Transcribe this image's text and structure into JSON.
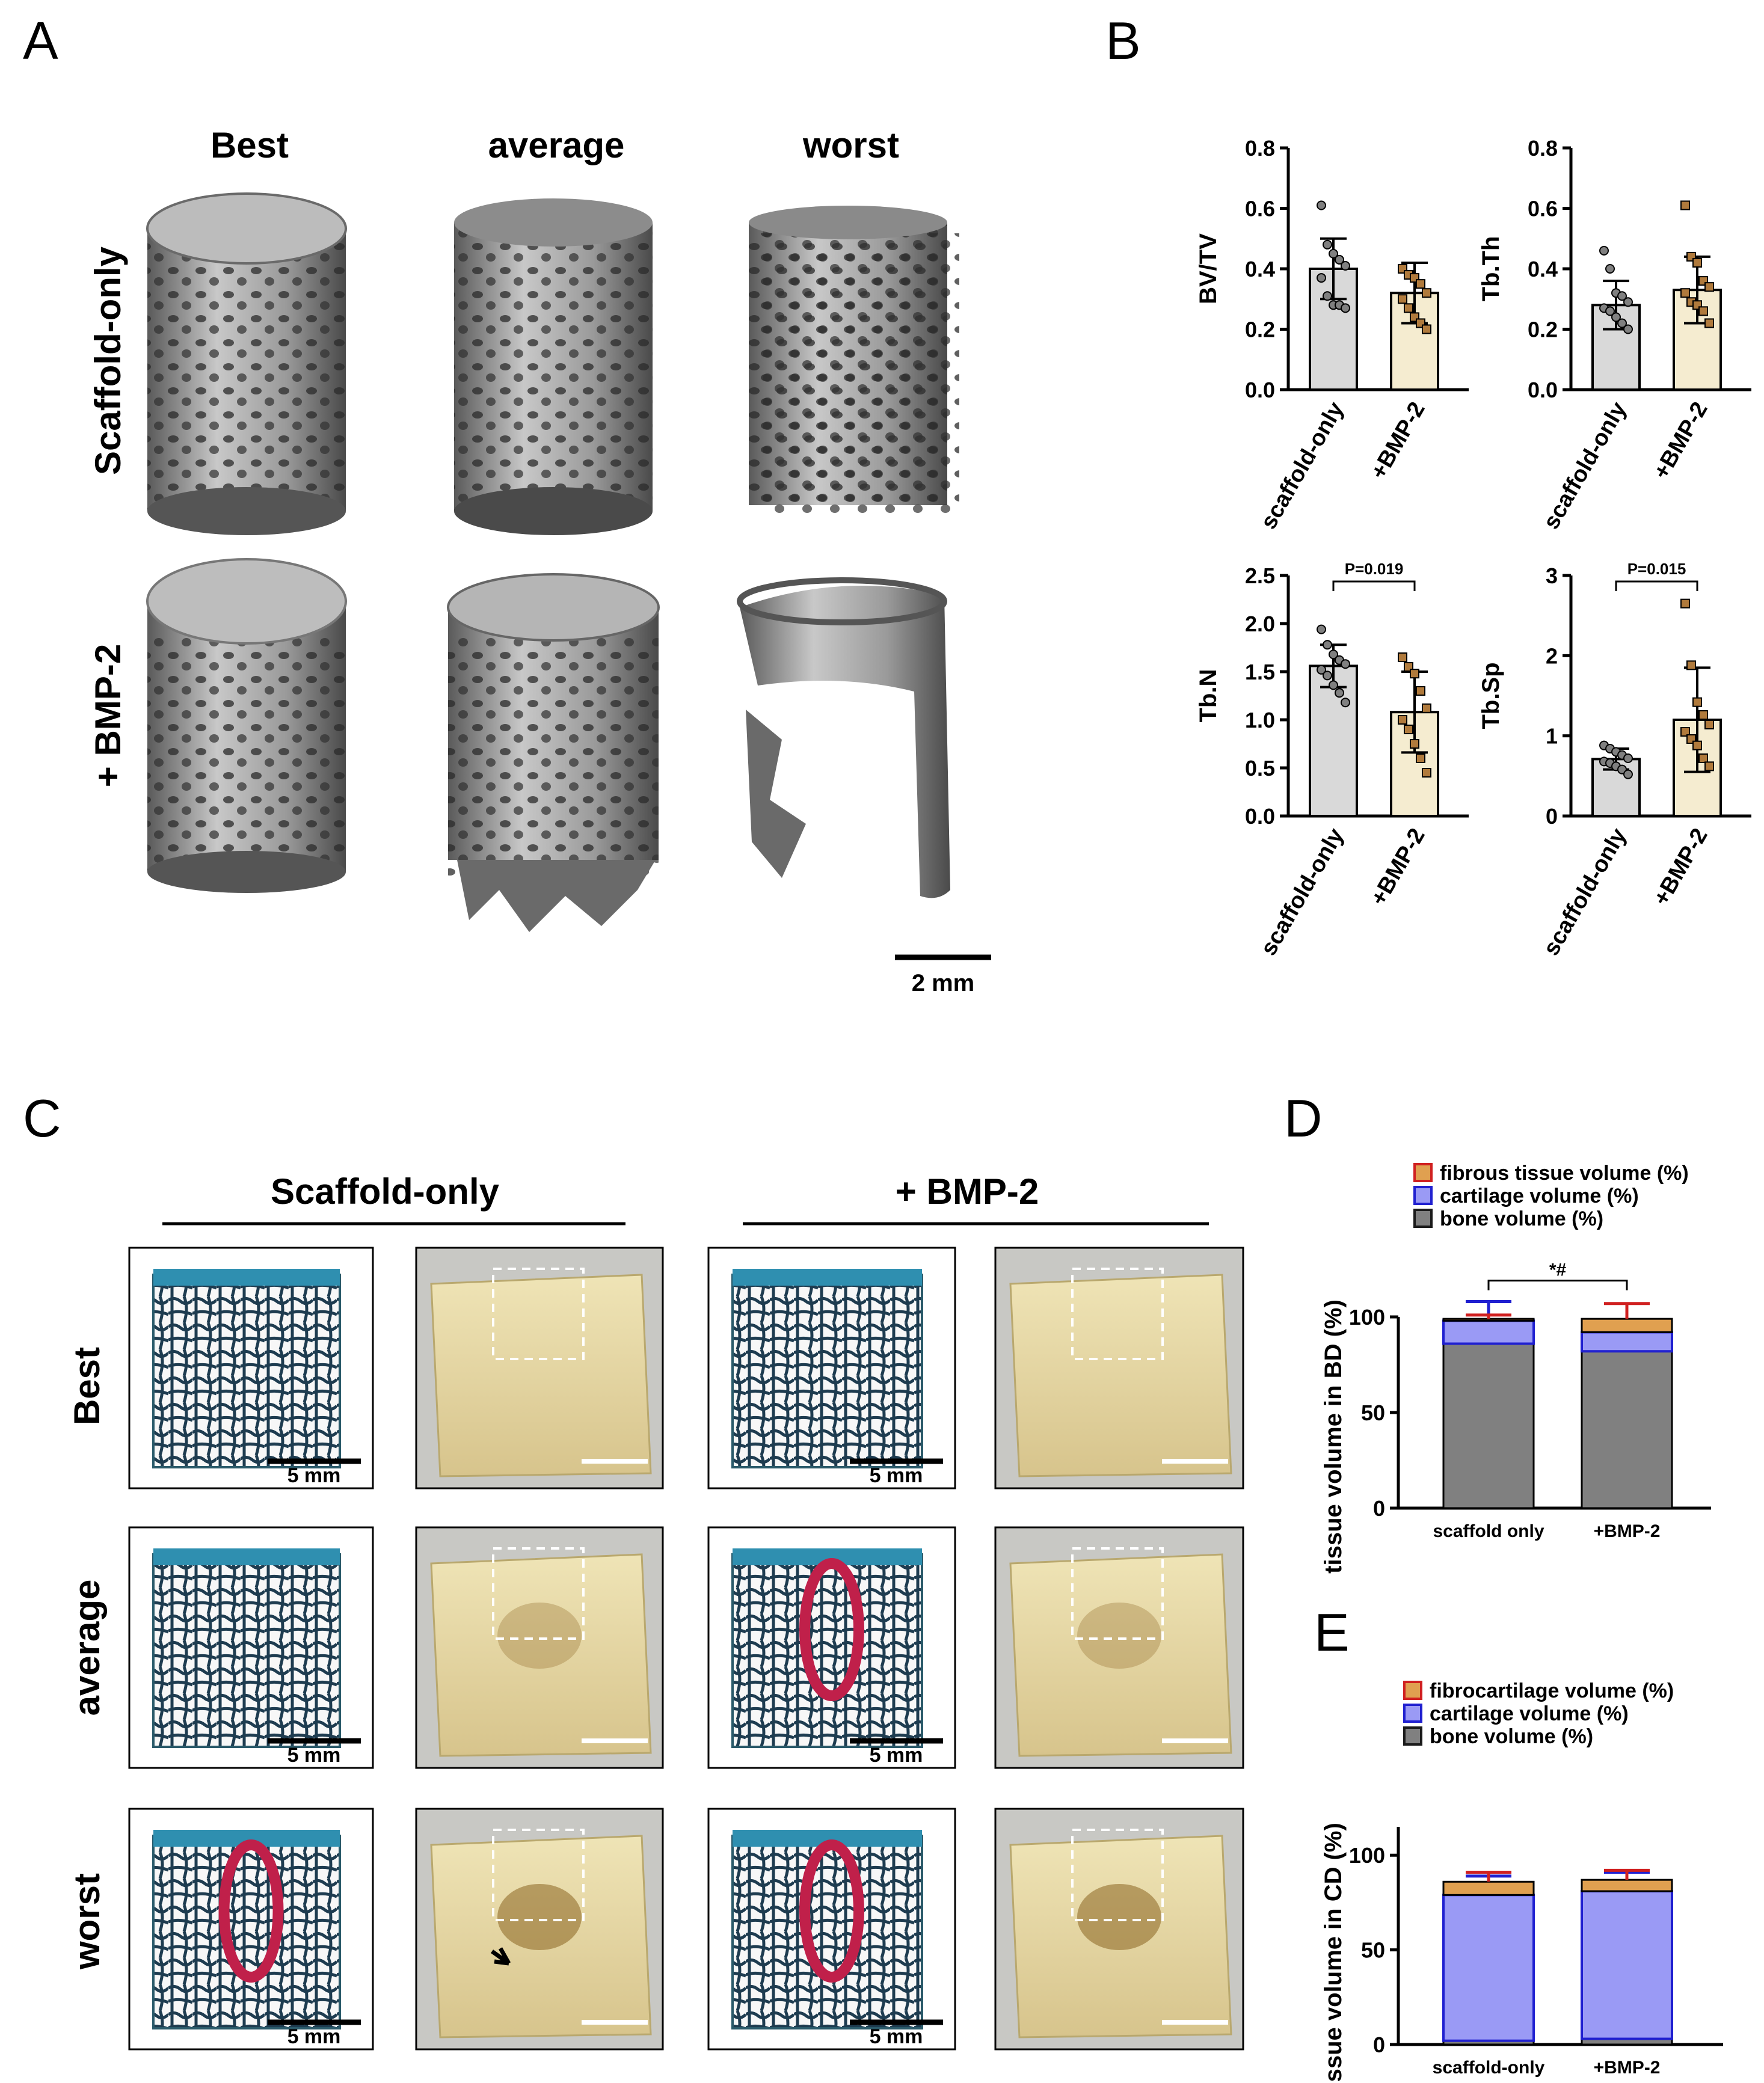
{
  "panels": {
    "A": "A",
    "B": "B",
    "C": "C",
    "D": "D",
    "E": "E"
  },
  "panelA": {
    "columns": [
      "Best",
      "average",
      "worst"
    ],
    "rows": [
      "Scaffold-only",
      "+ BMP-2"
    ],
    "scale_bar": "2 mm"
  },
  "panelC": {
    "groups": [
      "Scaffold-only",
      "+ BMP-2"
    ],
    "rows": [
      "Best",
      "average",
      "worst"
    ],
    "scale_bar": "5 mm"
  },
  "colors": {
    "scaffold_bar": "#d9d9d9",
    "bmp_bar": "#f5ecd0",
    "scaffold_point": "#808080",
    "bmp_point": "#b07a3c",
    "bone": "#808080",
    "cartilage": "#9a9af5",
    "fibrous": "#e0a050",
    "error_bone": "#1a1a1a",
    "error_cartilage": "#2020d0",
    "error_fibrous": "#d02020"
  },
  "chart_data": [
    {
      "id": "bvtv",
      "type": "bar",
      "ylabel": "BV/TV",
      "categories": [
        "scaffold-only",
        "+BMP-2"
      ],
      "ylim": [
        0,
        0.8
      ],
      "yticks": [
        "0.0",
        "0.2",
        "0.4",
        "0.6",
        "0.8"
      ],
      "values": [
        0.4,
        0.32
      ],
      "sd": [
        0.1,
        0.1
      ],
      "points": [
        [
          0.61,
          0.48,
          0.45,
          0.43,
          0.41,
          0.37,
          0.31,
          0.28,
          0.28,
          0.27
        ],
        [
          0.4,
          0.38,
          0.37,
          0.35,
          0.32,
          0.3,
          0.27,
          0.24,
          0.22,
          0.2
        ]
      ]
    },
    {
      "id": "tbth",
      "type": "bar",
      "ylabel": "Tb.Th",
      "categories": [
        "scaffold-only",
        "+BMP-2"
      ],
      "ylim": [
        0,
        0.8
      ],
      "yticks": [
        "0.0",
        "0.2",
        "0.4",
        "0.6",
        "0.8"
      ],
      "values": [
        0.28,
        0.33
      ],
      "sd": [
        0.08,
        0.11
      ],
      "points": [
        [
          0.46,
          0.4,
          0.32,
          0.31,
          0.29,
          0.27,
          0.26,
          0.24,
          0.22,
          0.2
        ],
        [
          0.61,
          0.44,
          0.42,
          0.36,
          0.34,
          0.32,
          0.29,
          0.28,
          0.26,
          0.22
        ]
      ]
    },
    {
      "id": "tbn",
      "type": "bar",
      "ylabel": "Tb.N",
      "categories": [
        "scaffold-only",
        "+BMP-2"
      ],
      "ylim": [
        0,
        2.5
      ],
      "yticks": [
        "0.0",
        "0.5",
        "1.0",
        "1.5",
        "2.0",
        "2.5"
      ],
      "values": [
        1.56,
        1.08
      ],
      "sd": [
        0.22,
        0.42
      ],
      "points": [
        [
          1.94,
          1.78,
          1.68,
          1.62,
          1.58,
          1.52,
          1.46,
          1.36,
          1.28,
          1.18
        ],
        [
          1.65,
          1.55,
          1.48,
          1.3,
          1.12,
          1.0,
          0.9,
          0.75,
          0.6,
          0.45
        ]
      ],
      "annotation": "P=0.019"
    },
    {
      "id": "tbsp",
      "type": "bar",
      "ylabel": "Tb.Sp",
      "categories": [
        "scaffold-only",
        "+BMP-2"
      ],
      "ylim": [
        0,
        3
      ],
      "yticks": [
        "0",
        "1",
        "2",
        "3"
      ],
      "values": [
        0.71,
        1.2
      ],
      "sd": [
        0.13,
        0.65
      ],
      "points": [
        [
          0.88,
          0.84,
          0.8,
          0.76,
          0.72,
          0.68,
          0.66,
          0.62,
          0.58,
          0.52
        ],
        [
          2.65,
          1.88,
          1.42,
          1.26,
          1.14,
          1.05,
          0.96,
          0.88,
          0.72,
          0.62
        ]
      ],
      "annotation": "P=0.015"
    },
    {
      "id": "bd",
      "type": "stacked-bar",
      "ylabel": "tissue volume in BD (%)",
      "categories": [
        "scaffold only",
        "+BMP-2"
      ],
      "ylim": [
        0,
        100
      ],
      "yticks": [
        "0",
        "50",
        "100"
      ],
      "series": [
        {
          "name": "bone volume (%)",
          "values": [
            86,
            82
          ],
          "sd": [
            12,
            11
          ]
        },
        {
          "name": "cartilage volume (%)",
          "values": [
            12,
            10
          ],
          "sd": [
            10,
            5
          ]
        },
        {
          "name": "fibrous tissue volume (%)",
          "values": [
            1,
            7
          ],
          "sd": [
            2,
            8
          ]
        }
      ],
      "annotation": "*#"
    },
    {
      "id": "cd",
      "type": "stacked-bar",
      "ylabel": "tissue volume in CD (%)",
      "categories": [
        "scaffold-only",
        "+BMP-2"
      ],
      "ylim": [
        0,
        115
      ],
      "yticks": [
        "0",
        "50",
        "100"
      ],
      "series": [
        {
          "name": "bone volume (%)",
          "values": [
            2,
            3
          ],
          "sd": [
            3,
            5
          ]
        },
        {
          "name": "cartilage volume (%)",
          "values": [
            77,
            78
          ],
          "sd": [
            10,
            10
          ]
        },
        {
          "name": "fibrocartilage volume (%)",
          "values": [
            7,
            6
          ],
          "sd": [
            5,
            5
          ]
        }
      ]
    }
  ]
}
